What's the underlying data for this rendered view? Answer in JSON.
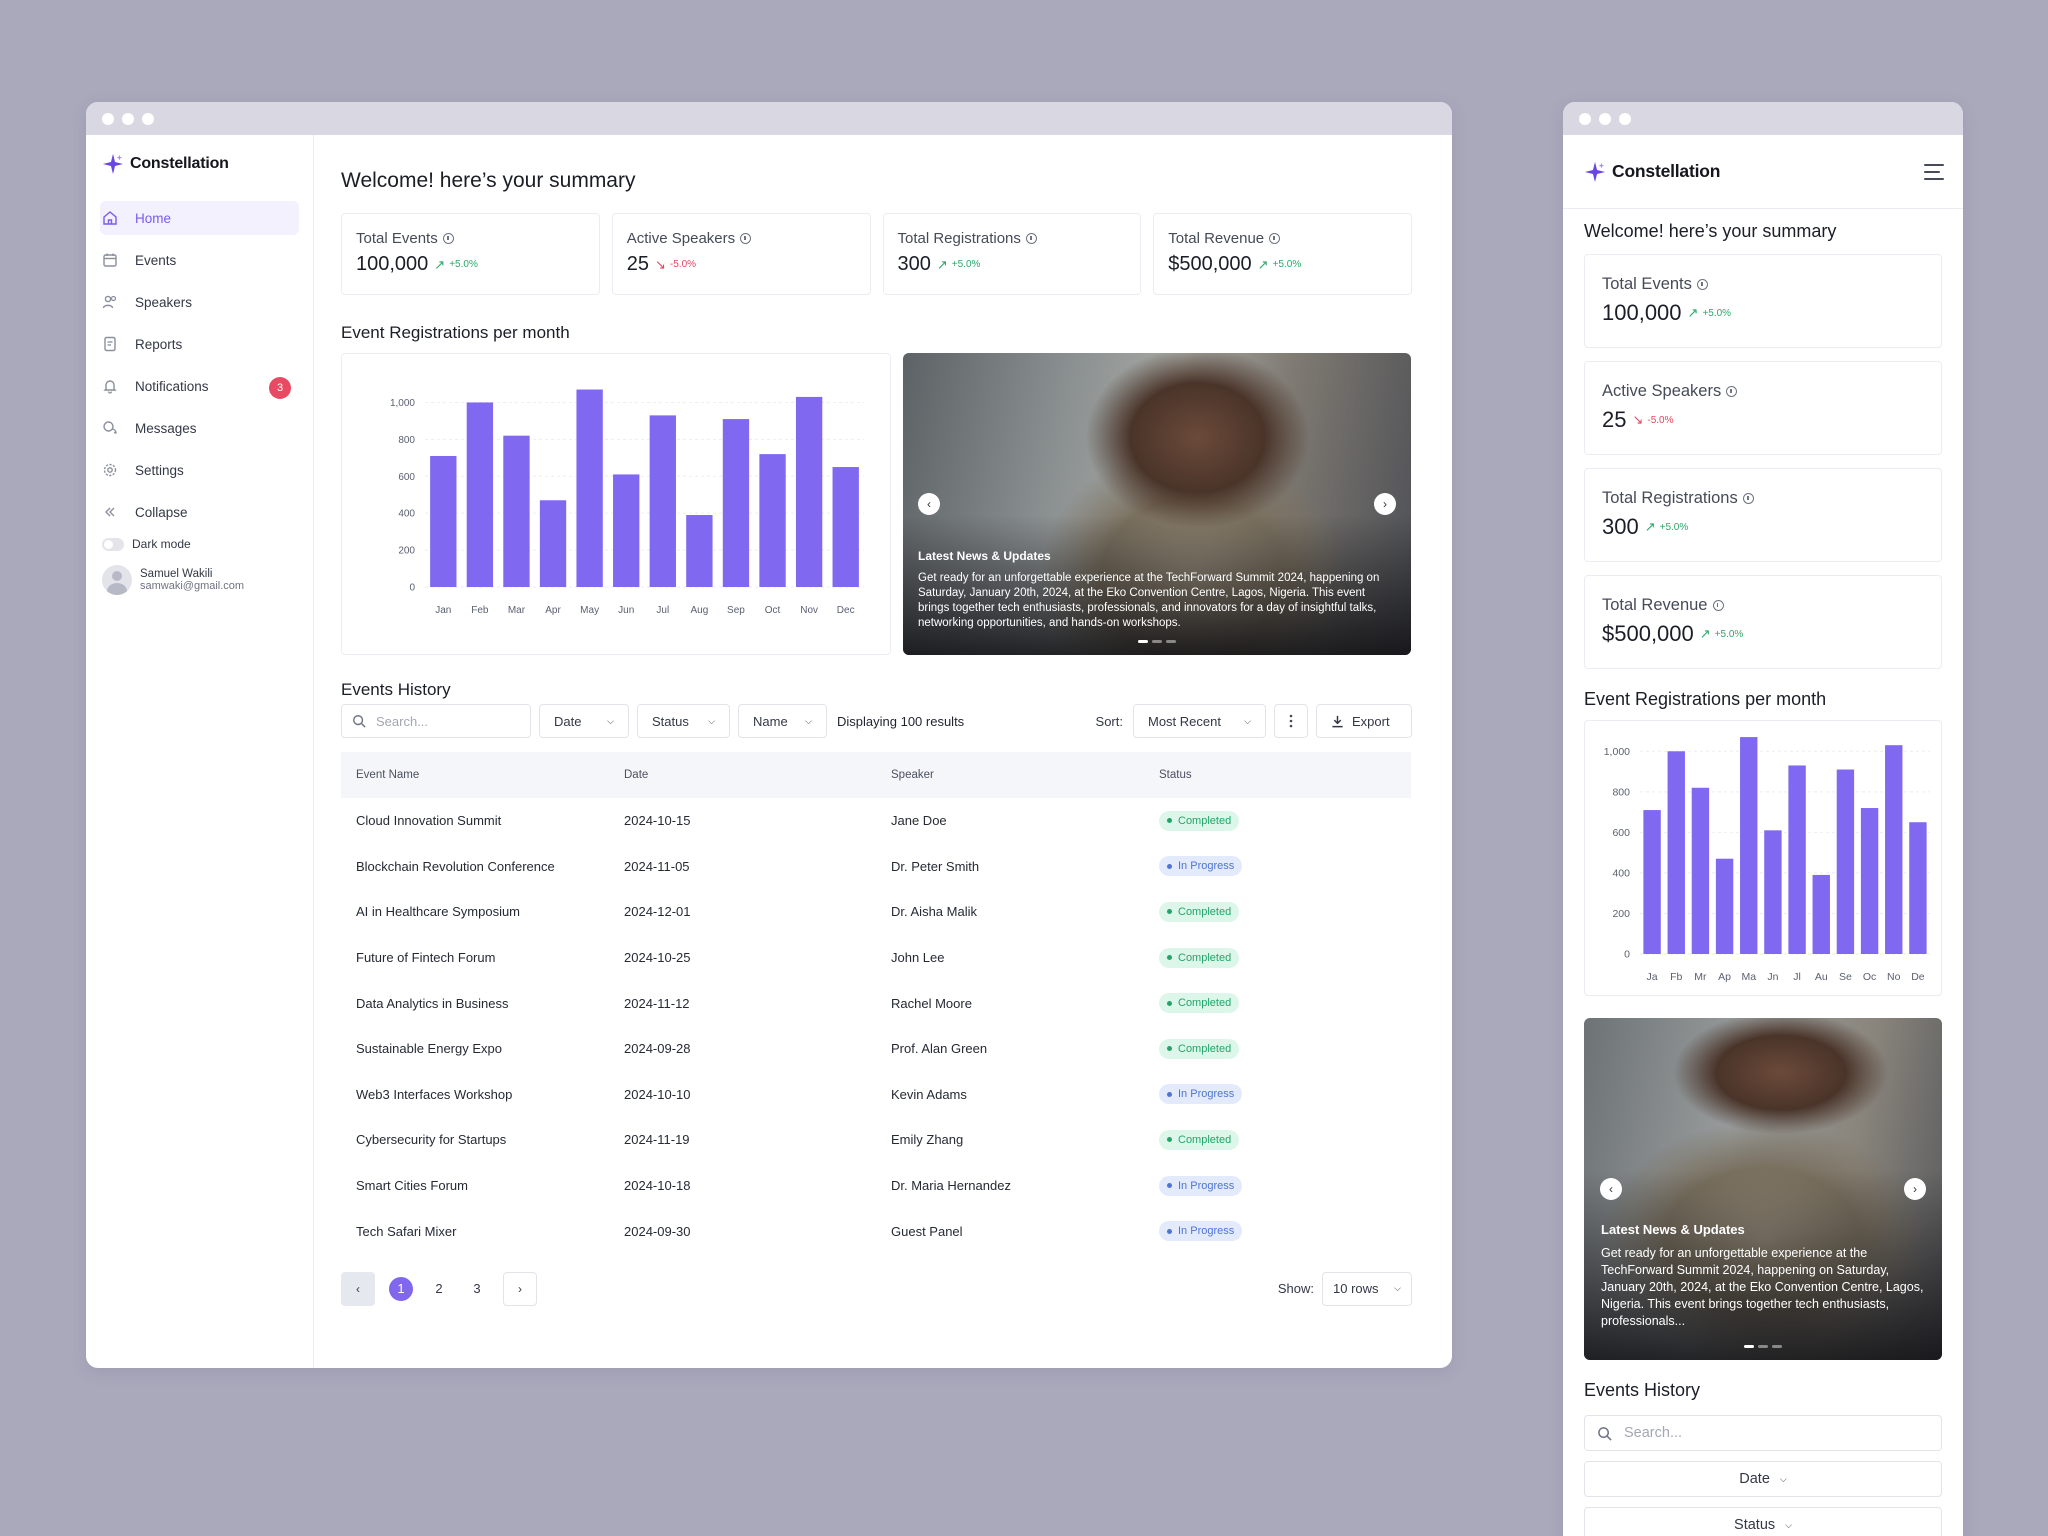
{
  "app": {
    "name": "Constellation"
  },
  "sidebar": {
    "items": [
      {
        "label": "Home",
        "icon": "home-icon",
        "active": true
      },
      {
        "label": "Events",
        "icon": "calendar-icon"
      },
      {
        "label": "Speakers",
        "icon": "users-icon"
      },
      {
        "label": "Reports",
        "icon": "document-icon"
      },
      {
        "label": "Notifications",
        "icon": "bell-icon",
        "badge": "3"
      },
      {
        "label": "Messages",
        "icon": "chat-icon"
      },
      {
        "label": "Settings",
        "icon": "gear-icon"
      },
      {
        "label": "Collapse",
        "icon": "double-chevron-left-icon"
      }
    ],
    "dark_mode_label": "Dark mode",
    "user": {
      "name": "Samuel Wakili",
      "email": "samwaki@gmail.com"
    }
  },
  "welcome": "Welcome! here’s your summary",
  "stats": [
    {
      "label": "Total Events",
      "value": "100,000",
      "change": "+5.0%",
      "direction": "up"
    },
    {
      "label": "Active Speakers",
      "value": "25",
      "change": "-5.0%",
      "direction": "down"
    },
    {
      "label": "Total Registrations",
      "value": "300",
      "change": "+5.0%",
      "direction": "up"
    },
    {
      "label": "Total Revenue",
      "value": "$500,000",
      "change": "+5.0%",
      "direction": "up"
    }
  ],
  "chart_section_title": "Event Registrations per month",
  "chart_data": {
    "type": "bar",
    "categories": [
      "Jan",
      "Feb",
      "Mar",
      "Apr",
      "May",
      "Jun",
      "Jul",
      "Aug",
      "Sep",
      "Oct",
      "Nov",
      "Dec"
    ],
    "mobile_categories": [
      "Ja",
      "Fb",
      "Mr",
      "Ap",
      "Ma",
      "Jn",
      "Jl",
      "Au",
      "Se",
      "Oc",
      "No",
      "De"
    ],
    "values": [
      710,
      1000,
      820,
      470,
      1070,
      610,
      930,
      390,
      910,
      720,
      1030,
      650
    ],
    "yticks": [
      "0",
      "200",
      "400",
      "600",
      "800",
      "1,000"
    ],
    "ylim": [
      0,
      1100
    ],
    "color": "#8068f0",
    "grid": true
  },
  "news": {
    "title": "Latest News & Updates",
    "body": "Get ready for an unforgettable experience at the TechForward Summit 2024, happening on Saturday, January 20th, 2024, at the Eko Convention Centre, Lagos, Nigeria. This event brings together tech enthusiasts, professionals, and innovators for a day of insightful talks, networking opportunities, and hands-on workshops.",
    "mobile_body": "Get ready for an unforgettable experience at the TechForward Summit 2024, happening on Saturday, January 20th, 2024, at the Eko Convention Centre, Lagos, Nigeria. This event brings together tech enthusiasts, professionals..."
  },
  "history": {
    "title": "Events History",
    "search_placeholder": "Search...",
    "filters": {
      "date": "Date",
      "status": "Status",
      "name": "Name"
    },
    "results_text": "Displaying 100 results",
    "sort_label": "Sort:",
    "sort_value": "Most Recent",
    "export_label": "Export",
    "columns": [
      "Event Name",
      "Date",
      "Speaker",
      "Status"
    ],
    "rows": [
      {
        "name": "Cloud Innovation Summit",
        "date": "2024-10-15",
        "speaker": "Jane Doe",
        "status": "Completed"
      },
      {
        "name": "Blockchain Revolution Conference",
        "date": "2024-11-05",
        "speaker": "Dr. Peter Smith",
        "status": "In Progress"
      },
      {
        "name": "AI in Healthcare Symposium",
        "date": "2024-12-01",
        "speaker": "Dr. Aisha Malik",
        "status": "Completed"
      },
      {
        "name": "Future of Fintech Forum",
        "date": "2024-10-25",
        "speaker": "John Lee",
        "status": "Completed"
      },
      {
        "name": "Data Analytics in Business",
        "date": "2024-11-12",
        "speaker": "Rachel Moore",
        "status": "Completed"
      },
      {
        "name": "Sustainable Energy Expo",
        "date": "2024-09-28",
        "speaker": "Prof. Alan Green",
        "status": "Completed"
      },
      {
        "name": "Web3 Interfaces Workshop",
        "date": "2024-10-10",
        "speaker": "Kevin Adams",
        "status": "In Progress"
      },
      {
        "name": "Cybersecurity for Startups",
        "date": "2024-11-19",
        "speaker": "Emily Zhang",
        "status": "Completed"
      },
      {
        "name": "Smart Cities Forum",
        "date": "2024-10-18",
        "speaker": "Dr. Maria Hernandez",
        "status": "In Progress"
      },
      {
        "name": "Tech Safari Mixer",
        "date": "2024-09-30",
        "speaker": "Guest Panel",
        "status": "In Progress"
      }
    ],
    "pages": [
      "1",
      "2",
      "3"
    ],
    "current_page": "1",
    "show_label": "Show:",
    "rows_value": "10 rows"
  },
  "colors": {
    "accent": "#7a5af0",
    "bar": "#8068f0",
    "up": "#2aa86a",
    "down": "#e2455f",
    "badge": "#e84a63"
  }
}
